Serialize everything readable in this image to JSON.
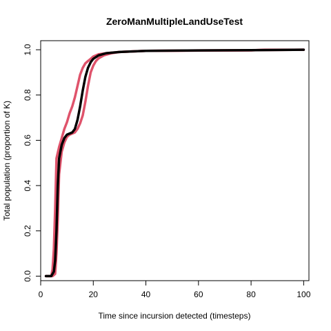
{
  "chart_data": {
    "type": "line",
    "title": "ZeroManMultipleLandUseTest",
    "xlabel": "Time since incursion detected (timesteps)",
    "ylabel": "Total population (proportion of K)",
    "xlim": [
      0,
      102
    ],
    "ylim": [
      -0.02,
      1.04
    ],
    "xticks": [
      0,
      20,
      40,
      60,
      80,
      100
    ],
    "yticks": [
      0.0,
      0.2,
      0.4,
      0.6,
      0.8,
      1.0
    ],
    "xtick_labels": [
      "0",
      "20",
      "40",
      "60",
      "80",
      "100"
    ],
    "ytick_labels": [
      "0.0",
      "0.2",
      "0.4",
      "0.6",
      "0.8",
      "1.0"
    ],
    "grid": false,
    "colors": {
      "median": "#000000",
      "bounds": "#DF536B"
    },
    "series": [
      {
        "role": "median",
        "x": [
          2,
          4,
          5,
          5.5,
          6,
          6.5,
          7,
          8,
          9,
          10,
          11,
          12,
          13,
          14,
          15,
          16,
          17,
          18,
          19,
          20,
          22,
          25,
          30,
          40,
          60,
          80,
          100
        ],
        "y": [
          0.0,
          0.0,
          0.02,
          0.07,
          0.2,
          0.4,
          0.52,
          0.58,
          0.61,
          0.625,
          0.63,
          0.635,
          0.65,
          0.69,
          0.75,
          0.82,
          0.88,
          0.92,
          0.945,
          0.96,
          0.975,
          0.985,
          0.99,
          0.995,
          0.997,
          0.998,
          1.0
        ]
      },
      {
        "role": "upper",
        "x": [
          2,
          4,
          4.5,
          5,
          5.5,
          6,
          7,
          8,
          9,
          10,
          11,
          12,
          13,
          14,
          15,
          16,
          17,
          18,
          19,
          20,
          22,
          25,
          30,
          40,
          60,
          80,
          100
        ],
        "y": [
          0.0,
          0.0,
          0.03,
          0.12,
          0.3,
          0.52,
          0.57,
          0.61,
          0.65,
          0.68,
          0.72,
          0.75,
          0.79,
          0.84,
          0.89,
          0.92,
          0.94,
          0.95,
          0.96,
          0.97,
          0.98,
          0.985,
          0.99,
          0.995,
          0.997,
          0.998,
          1.0
        ]
      },
      {
        "role": "lower",
        "x": [
          2,
          4.5,
          5.5,
          6,
          6.5,
          7,
          8,
          9,
          10,
          11,
          12,
          13,
          14,
          15,
          16,
          17,
          18,
          19,
          20,
          21,
          22,
          24,
          27,
          30,
          40,
          60,
          80,
          85,
          100
        ],
        "y": [
          0.0,
          0.0,
          0.01,
          0.1,
          0.25,
          0.45,
          0.55,
          0.59,
          0.615,
          0.625,
          0.63,
          0.635,
          0.65,
          0.675,
          0.71,
          0.77,
          0.84,
          0.9,
          0.93,
          0.95,
          0.962,
          0.975,
          0.985,
          0.99,
          0.995,
          0.996,
          0.997,
          1.0,
          1.0
        ]
      }
    ]
  }
}
